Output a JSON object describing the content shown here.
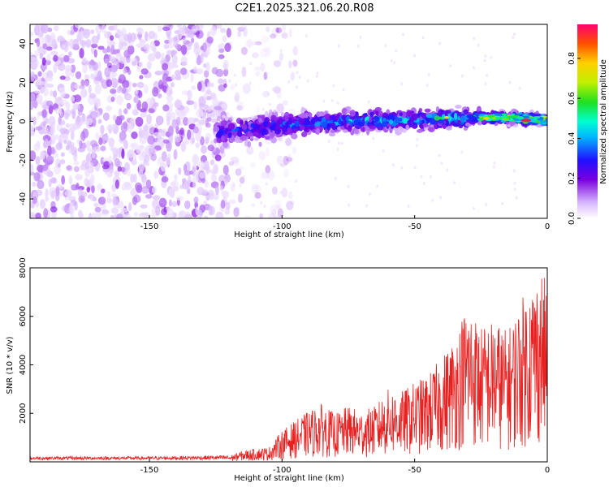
{
  "title": "C2E1.2025.321.06.20.R08",
  "chart_data": [
    {
      "type": "heatmap",
      "name": "spectrogram",
      "xlabel": "Height of straight line (km)",
      "ylabel": "Frequency (Hz)",
      "xlim": [
        -195,
        0
      ],
      "ylim": [
        -50,
        50
      ],
      "xticks": [
        -150,
        -100,
        -50,
        0
      ],
      "yticks": [
        -40,
        -20,
        0,
        20,
        40
      ],
      "colorbar": {
        "label": "Normalized spectral amplitude",
        "range": [
          0,
          0.97
        ],
        "ticks": [
          0.0,
          0.2,
          0.4,
          0.6,
          0.8
        ],
        "tick_labels": [
          "0.0",
          "0.2",
          "0.4",
          "0.6",
          "0.8"
        ]
      },
      "features": [
        {
          "description": "broadband noise",
          "x_range": [
            -195,
            -120
          ],
          "freq_range": [
            -50,
            50
          ],
          "amplitude": 0.2
        },
        {
          "description": "signal band center",
          "points": [
            [
              -125,
              -6
            ],
            [
              -100,
              -2
            ],
            [
              -75,
              0
            ],
            [
              -50,
              1
            ],
            [
              -25,
              2
            ],
            [
              0,
              1
            ]
          ]
        },
        {
          "description": "peak amplitude",
          "x": -8,
          "freq": 0.5,
          "amplitude": 0.95
        }
      ]
    },
    {
      "type": "line",
      "name": "snr",
      "xlabel": "Height of straight line (km)",
      "ylabel": "SNR (10 * v/v)",
      "xlim": [
        -195,
        0
      ],
      "ylim": [
        0,
        8000
      ],
      "xticks": [
        -150,
        -100,
        -50,
        0
      ],
      "yticks": [
        2000,
        4000,
        6000,
        8000
      ],
      "series": [
        {
          "name": "SNR",
          "color": "#e82020",
          "envelope_x": [
            -195,
            -150,
            -120,
            -115,
            -110,
            -105,
            -100,
            -95,
            -90,
            -85,
            -80,
            -75,
            -70,
            -65,
            -60,
            -55,
            -50,
            -45,
            -40,
            -35,
            -30,
            -25,
            -20,
            -15,
            -10,
            -5,
            -2,
            0
          ],
          "envelope_y": [
            200,
            200,
            250,
            450,
            550,
            600,
            1300,
            1700,
            2100,
            2400,
            2000,
            2300,
            2100,
            2300,
            3000,
            2900,
            3300,
            3600,
            4300,
            5200,
            6700,
            5600,
            5900,
            5400,
            6700,
            7600,
            8000,
            7200
          ]
        }
      ]
    }
  ]
}
